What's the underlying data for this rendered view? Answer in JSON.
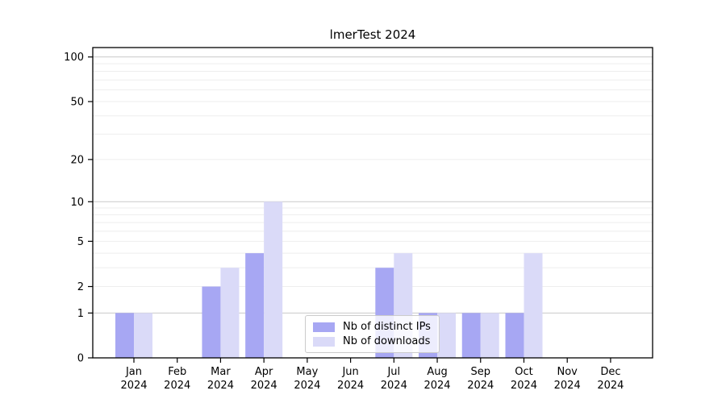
{
  "chart_data": {
    "type": "bar",
    "title": "lmerTest 2024",
    "year_label": "2024",
    "categories": [
      "Jan",
      "Feb",
      "Mar",
      "Apr",
      "May",
      "Jun",
      "Jul",
      "Aug",
      "Sep",
      "Oct",
      "Nov",
      "Dec"
    ],
    "series": [
      {
        "name": "Nb of distinct IPs",
        "color": "#a7a7f3",
        "values": [
          1,
          0,
          2,
          4,
          0,
          0,
          3,
          1,
          1,
          1,
          0,
          0
        ]
      },
      {
        "name": "Nb of downloads",
        "color": "#dadaf8",
        "values": [
          1,
          0,
          3,
          10,
          0,
          0,
          4,
          1,
          1,
          4,
          0,
          0
        ]
      }
    ],
    "yscale": "log1p",
    "yticks": [
      0,
      1,
      2,
      5,
      10,
      20,
      50,
      100
    ],
    "ylim": [
      0,
      116
    ],
    "grid": {
      "major_values": [
        1,
        10,
        100
      ],
      "minor_values": [
        2,
        3,
        4,
        5,
        6,
        7,
        8,
        9,
        20,
        30,
        40,
        50,
        60,
        70,
        80,
        90
      ],
      "major_color": "#c9c9c9",
      "minor_color": "#eeeeee"
    },
    "legend_position": "inside-bottom-center",
    "axis_color": "#000000",
    "background_color": "#ffffff",
    "tick_label_color": "#000000"
  }
}
